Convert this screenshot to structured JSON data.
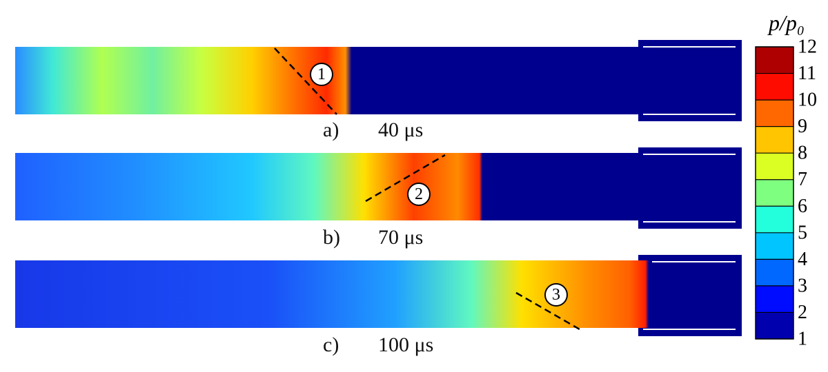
{
  "colorbar": {
    "title": "p/p₀",
    "ticks": [
      1,
      2,
      3,
      4,
      5,
      6,
      7,
      8,
      9,
      10,
      11,
      12
    ],
    "colormap": [
      "#00007f",
      "#0000ff",
      "#007fff",
      "#00ffff",
      "#7fff7f",
      "#ffff00",
      "#ff7f00",
      "#ff0000",
      "#7f0000"
    ]
  },
  "panels": [
    {
      "label": "a)",
      "time": "40 μs",
      "marker": "1"
    },
    {
      "label": "b)",
      "time": "70 μs",
      "marker": "2"
    },
    {
      "label": "c)",
      "time": "100 μs",
      "marker": "3"
    }
  ]
}
